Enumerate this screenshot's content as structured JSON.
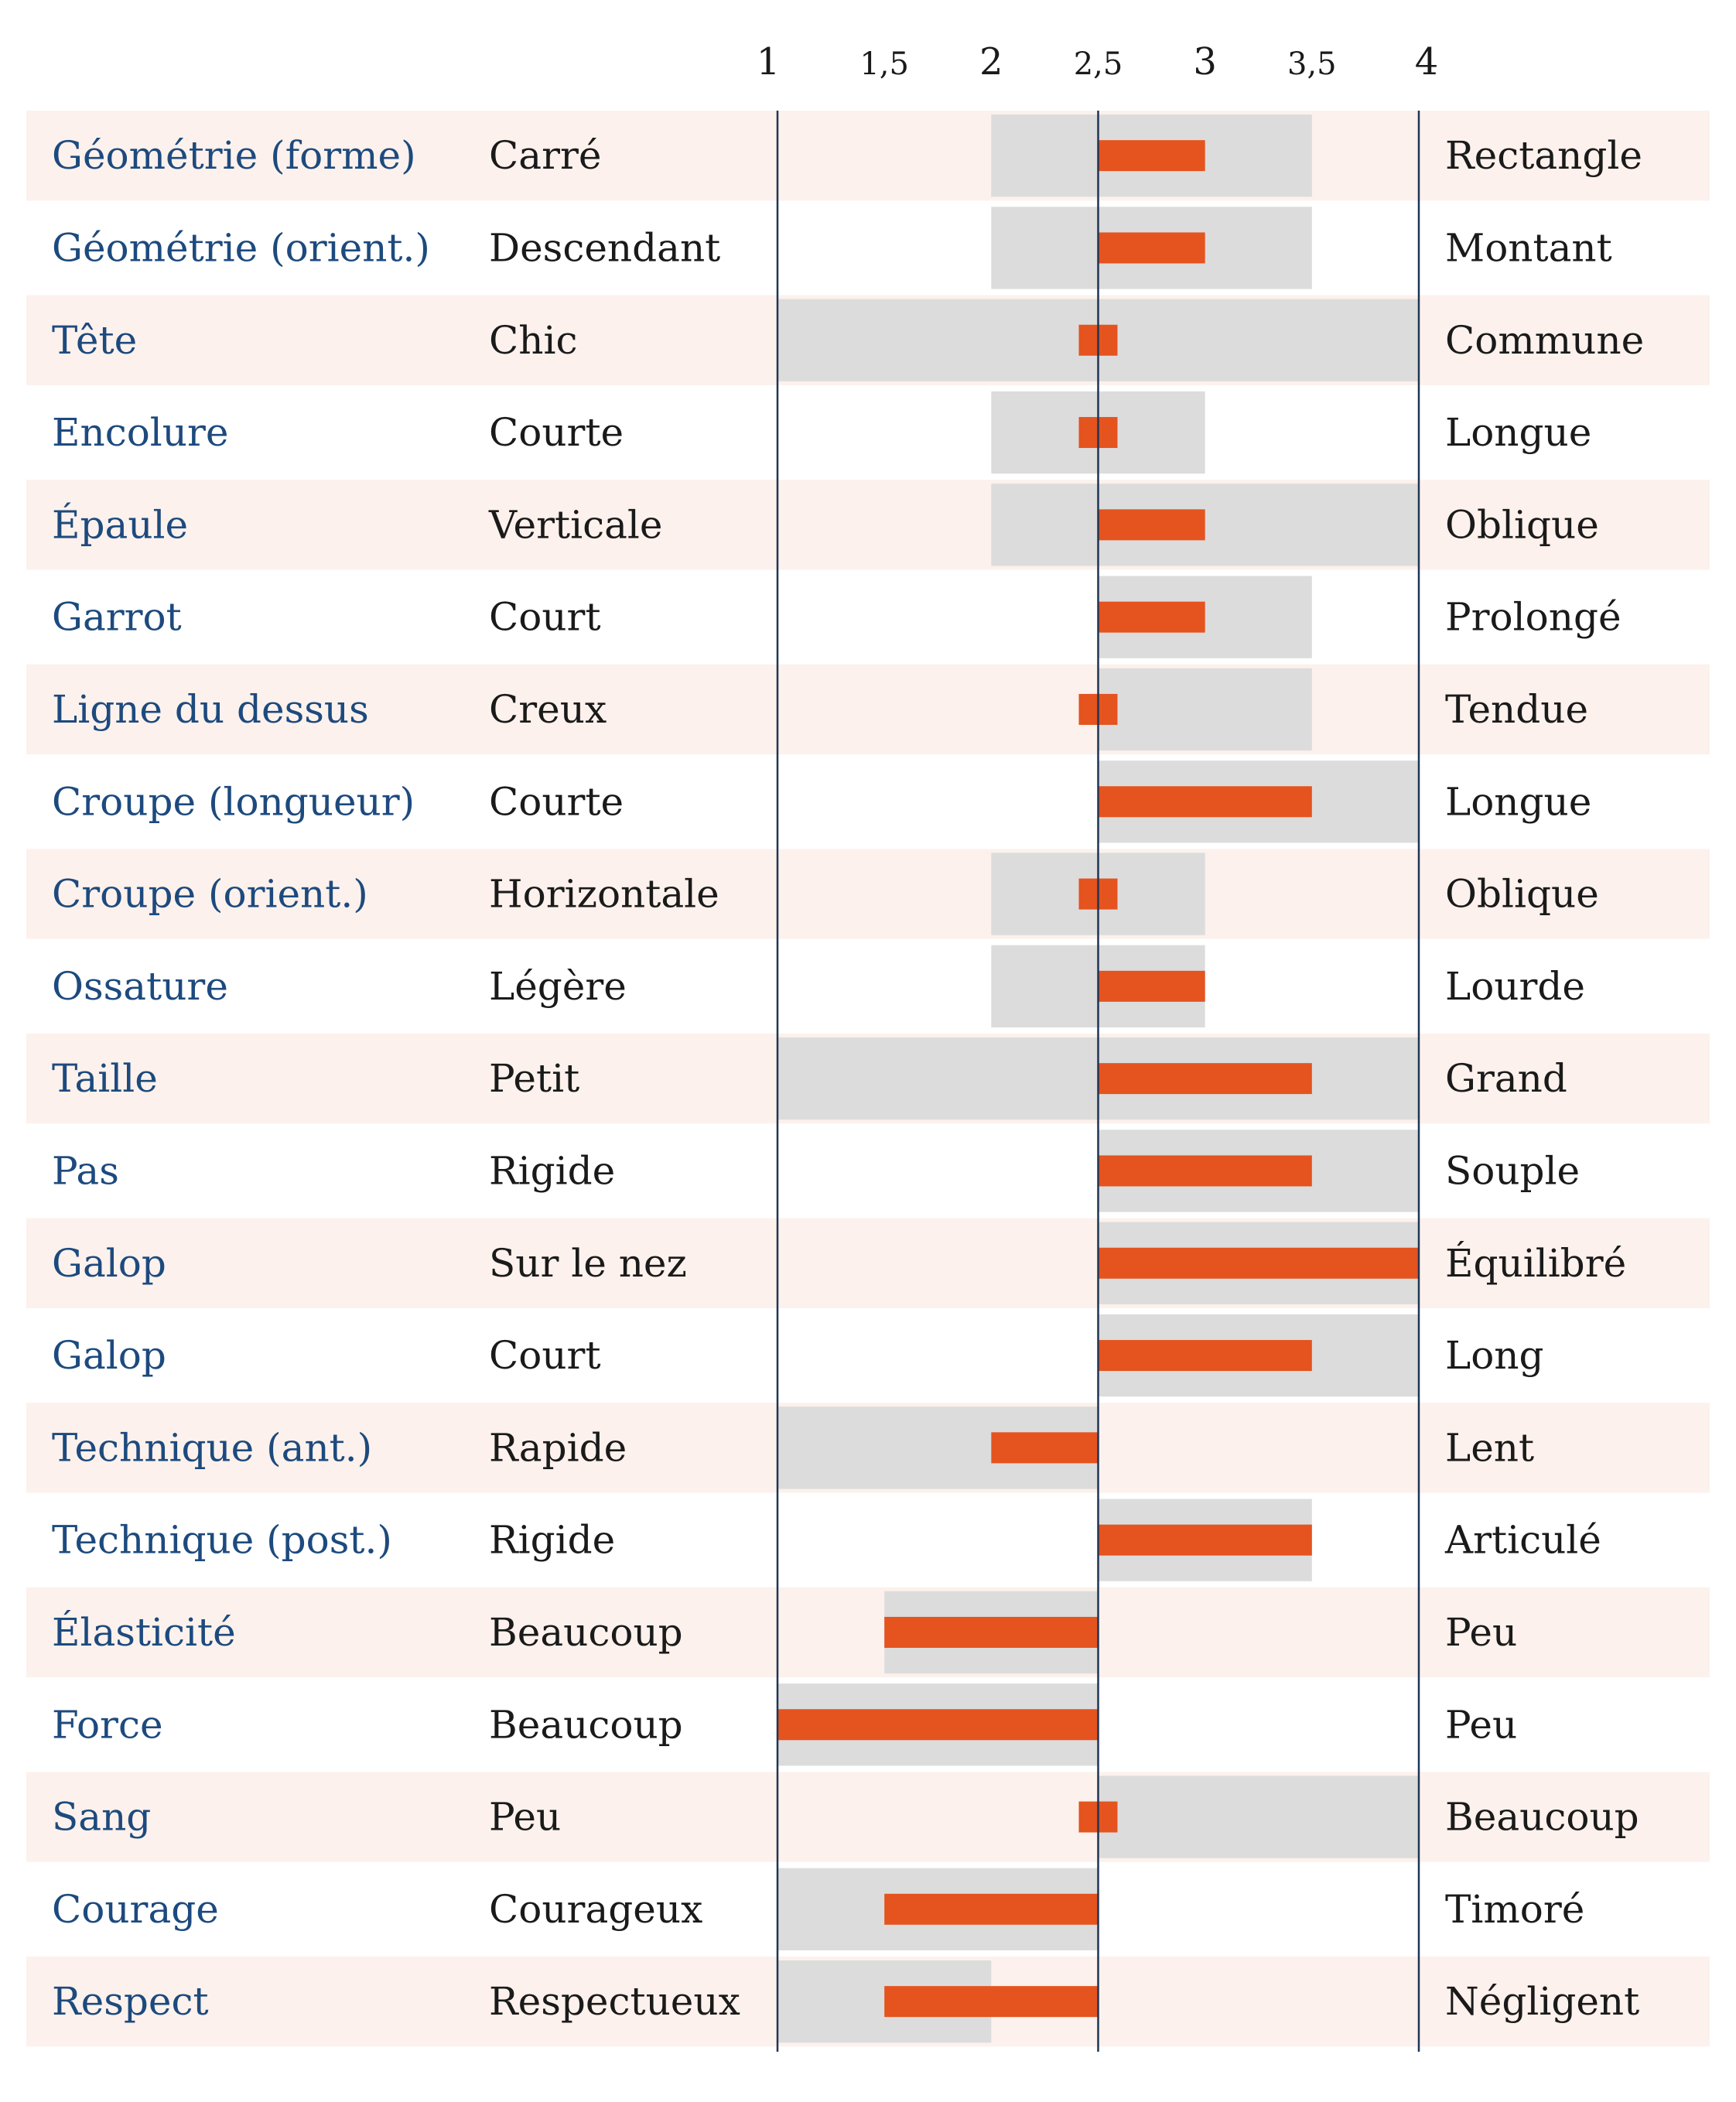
{
  "chart_data": {
    "type": "bar",
    "xlim": [
      1,
      4
    ],
    "x_ticks": [
      "1",
      "1,5",
      "2",
      "2,5",
      "3",
      "3,5",
      "4"
    ],
    "x_tick_values": [
      1,
      1.5,
      2,
      2.5,
      3,
      3.5,
      4
    ],
    "reference_line": 2.5,
    "colors": {
      "row_shade": "#fcf1ec",
      "range_band": "#dcdcdc",
      "value_bar": "#e5531f",
      "criterion_text": "#1d4a7e",
      "axis_line": "#1f3554"
    },
    "rows": [
      {
        "criterion": "Géométrie (forme)",
        "left": "Carré",
        "right": "Rectangle",
        "range": [
          2,
          3.5
        ],
        "value": 3
      },
      {
        "criterion": "Géométrie (orient.)",
        "left": "Descendant",
        "right": "Montant",
        "range": [
          2,
          3.5
        ],
        "value": 3
      },
      {
        "criterion": "Tête",
        "left": "Chic",
        "right": "Commune",
        "range": [
          1,
          4
        ],
        "value": 2.5
      },
      {
        "criterion": "Encolure",
        "left": "Courte",
        "right": "Longue",
        "range": [
          2,
          3
        ],
        "value": 2.5
      },
      {
        "criterion": "Épaule",
        "left": "Verticale",
        "right": "Oblique",
        "range": [
          2,
          4
        ],
        "value": 3
      },
      {
        "criterion": "Garrot",
        "left": "Court",
        "right": "Prolongé",
        "range": [
          2.5,
          3.5
        ],
        "value": 3
      },
      {
        "criterion": "Ligne du dessus",
        "left": "Creux",
        "right": "Tendue",
        "range": [
          2.5,
          3.5
        ],
        "value": 2.5
      },
      {
        "criterion": "Croupe (longueur)",
        "left": "Courte",
        "right": "Longue",
        "range": [
          2.5,
          4
        ],
        "value": 3.5
      },
      {
        "criterion": "Croupe (orient.)",
        "left": "Horizontale",
        "right": "Oblique",
        "range": [
          2,
          3
        ],
        "value": 2.5
      },
      {
        "criterion": "Ossature",
        "left": "Légère",
        "right": "Lourde",
        "range": [
          2,
          3
        ],
        "value": 3
      },
      {
        "criterion": "Taille",
        "left": "Petit",
        "right": "Grand",
        "range": [
          1,
          4
        ],
        "value": 3.5
      },
      {
        "criterion": "Pas",
        "left": "Rigide",
        "right": "Souple",
        "range": [
          2.5,
          4
        ],
        "value": 3.5
      },
      {
        "criterion": "Galop",
        "left": "Sur le nez",
        "right": "Équilibré",
        "range": [
          2.5,
          4
        ],
        "value": 4
      },
      {
        "criterion": "Galop",
        "left": "Court",
        "right": "Long",
        "range": [
          2.5,
          4
        ],
        "value": 3.5
      },
      {
        "criterion": "Technique (ant.)",
        "left": "Rapide",
        "right": "Lent",
        "range": [
          1,
          2.5
        ],
        "value": 2
      },
      {
        "criterion": "Technique (post.)",
        "left": "Rigide",
        "right": "Articulé",
        "range": [
          2.5,
          3.5
        ],
        "value": 3.5
      },
      {
        "criterion": "Élasticité",
        "left": "Beaucoup",
        "right": "Peu",
        "range": [
          1.5,
          2.5
        ],
        "value": 1.5
      },
      {
        "criterion": "Force",
        "left": "Beaucoup",
        "right": "Peu",
        "range": [
          1,
          2.5
        ],
        "value": 1
      },
      {
        "criterion": "Sang",
        "left": "Peu",
        "right": "Beaucoup",
        "range": [
          2.5,
          4
        ],
        "value": 2.5
      },
      {
        "criterion": "Courage",
        "left": "Courageux",
        "right": "Timoré",
        "range": [
          1,
          2.5
        ],
        "value": 1.5
      },
      {
        "criterion": "Respect",
        "left": "Respectueux",
        "right": "Négligent",
        "range": [
          1,
          2
        ],
        "value": 1.5
      }
    ]
  }
}
